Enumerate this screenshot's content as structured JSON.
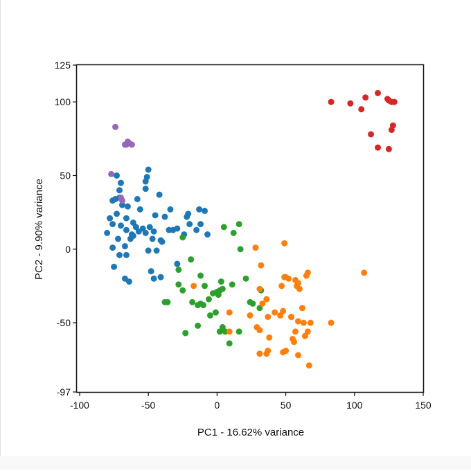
{
  "chart_data": {
    "type": "scatter",
    "xlabel": "PC1 - 16.62% variance",
    "ylabel": "PC2 - 9.90% variance",
    "xlim": [
      -102,
      150
    ],
    "ylim": [
      -97,
      125
    ],
    "x_ticks": [
      "-100",
      "-50",
      "0",
      "50",
      "100",
      "150"
    ],
    "y_ticks": [
      "125",
      "100",
      "50",
      "0",
      "-50",
      "-97"
    ],
    "grid": false,
    "legend": "none",
    "series": [
      {
        "color": "#1f77b4",
        "points": [
          [
            -80,
            11
          ],
          [
            -78,
            21
          ],
          [
            -76,
            33
          ],
          [
            -76,
            1
          ],
          [
            -76,
            17
          ],
          [
            -75,
            -12
          ],
          [
            -74,
            34
          ],
          [
            -73,
            24
          ],
          [
            -73,
            50
          ],
          [
            -72,
            7
          ],
          [
            -71,
            40
          ],
          [
            -71,
            -4
          ],
          [
            -71,
            35
          ],
          [
            -70,
            45
          ],
          [
            -70,
            16
          ],
          [
            -69,
            30
          ],
          [
            -67,
            -20
          ],
          [
            -67,
            2
          ],
          [
            -66,
            -4
          ],
          [
            -66,
            13
          ],
          [
            -66,
            21
          ],
          [
            -65,
            29
          ],
          [
            -64,
            -22
          ],
          [
            -63,
            7
          ],
          [
            -62,
            10
          ],
          [
            -61,
            9
          ],
          [
            -61,
            18
          ],
          [
            -59,
            15
          ],
          [
            -58,
            34
          ],
          [
            -57,
            12
          ],
          [
            -56,
            27
          ],
          [
            -54,
            14
          ],
          [
            -52,
            11
          ],
          [
            -52,
            41
          ],
          [
            -52,
            46
          ],
          [
            -51,
            49
          ],
          [
            -50,
            54
          ],
          [
            -50,
            -1
          ],
          [
            -49,
            15
          ],
          [
            -48,
            -15
          ],
          [
            -47,
            7
          ],
          [
            -46,
            -20
          ],
          [
            -46,
            12
          ],
          [
            -45,
            23
          ],
          [
            -44,
            -1
          ],
          [
            -42,
            37
          ],
          [
            -41,
            -19
          ],
          [
            -41,
            6
          ],
          [
            -40,
            5
          ],
          [
            -38,
            22
          ],
          [
            -35,
            13
          ],
          [
            -34,
            27
          ],
          [
            -32,
            13
          ],
          [
            -29,
            -10
          ],
          [
            -29,
            14
          ],
          [
            -24,
            10
          ],
          [
            -22,
            22
          ],
          [
            -21,
            24
          ],
          [
            -20,
            17
          ],
          [
            -15,
            13
          ],
          [
            -13,
            27
          ],
          [
            -12,
            17
          ],
          [
            -9,
            26
          ],
          [
            -7,
            10
          ]
        ]
      },
      {
        "color": "#9467bd",
        "points": [
          [
            -77,
            51
          ],
          [
            -74,
            83
          ],
          [
            -70,
            35
          ],
          [
            -69,
            33
          ],
          [
            -67,
            71
          ],
          [
            -66,
            71
          ],
          [
            -65,
            73
          ],
          [
            -64,
            72
          ],
          [
            -62,
            71
          ]
        ]
      },
      {
        "color": "#2ca02c",
        "points": [
          [
            -38,
            -36
          ],
          [
            -36,
            -36
          ],
          [
            -28,
            -14
          ],
          [
            -28,
            -24
          ],
          [
            -25,
            -28
          ],
          [
            -25,
            8
          ],
          [
            -23,
            -57
          ],
          [
            -19,
            -7
          ],
          [
            -18,
            -36
          ],
          [
            -14,
            -38
          ],
          [
            -14,
            -52
          ],
          [
            -12,
            -18
          ],
          [
            -12,
            -37
          ],
          [
            -10,
            -38
          ],
          [
            -9,
            -25
          ],
          [
            -6,
            -34
          ],
          [
            -5,
            -45
          ],
          [
            -3,
            -30
          ],
          [
            -1,
            -43
          ],
          [
            0,
            -29
          ],
          [
            1,
            -31
          ],
          [
            2,
            -28
          ],
          [
            2,
            -56
          ],
          [
            3,
            -22
          ],
          [
            4,
            -53
          ],
          [
            4,
            -27
          ],
          [
            6,
            -56
          ],
          [
            5,
            15
          ],
          [
            9,
            -64
          ],
          [
            11,
            -24
          ],
          [
            12,
            11
          ],
          [
            16,
            -56
          ],
          [
            16,
            17
          ],
          [
            17,
            0
          ],
          [
            21,
            -20
          ],
          [
            24,
            -36
          ],
          [
            26,
            -37
          ],
          [
            31,
            -40
          ],
          [
            32,
            -28
          ]
        ]
      },
      {
        "color": "#ff7f0e",
        "points": [
          [
            -17,
            -25
          ],
          [
            9,
            -43
          ],
          [
            9,
            -56
          ],
          [
            24,
            -45
          ],
          [
            28,
            1
          ],
          [
            29,
            -53
          ],
          [
            31,
            -71
          ],
          [
            31,
            -55
          ],
          [
            33,
            -37
          ],
          [
            31,
            -27
          ],
          [
            32,
            -11
          ],
          [
            36,
            -34
          ],
          [
            36,
            -71
          ],
          [
            37,
            -69
          ],
          [
            37,
            -46
          ],
          [
            38,
            -60
          ],
          [
            42,
            -43
          ],
          [
            46,
            -45
          ],
          [
            47,
            -25
          ],
          [
            48,
            -70
          ],
          [
            48,
            -42
          ],
          [
            49,
            4
          ],
          [
            49,
            -19
          ],
          [
            50,
            -69
          ],
          [
            50,
            -19
          ],
          [
            52,
            -20
          ],
          [
            54,
            -46
          ],
          [
            54,
            -46
          ],
          [
            55,
            -61
          ],
          [
            56,
            -63
          ],
          [
            57,
            -56
          ],
          [
            57,
            -21
          ],
          [
            58,
            -25
          ],
          [
            59,
            -23
          ],
          [
            59,
            -49
          ],
          [
            59,
            -72
          ],
          [
            60,
            -27
          ],
          [
            62,
            -40
          ],
          [
            63,
            -50
          ],
          [
            64,
            -59
          ],
          [
            65,
            -18
          ],
          [
            66,
            -16
          ],
          [
            66,
            -56
          ],
          [
            67,
            -79
          ],
          [
            68,
            -50
          ],
          [
            83,
            -50
          ],
          [
            107,
            -16
          ]
        ]
      },
      {
        "color": "#d62728",
        "points": [
          [
            83,
            100
          ],
          [
            97,
            99
          ],
          [
            105,
            95
          ],
          [
            108,
            103
          ],
          [
            112,
            78
          ],
          [
            117,
            69
          ],
          [
            117,
            106
          ],
          [
            124,
            102
          ],
          [
            125,
            101
          ],
          [
            125,
            68
          ],
          [
            127,
            100
          ],
          [
            127,
            81
          ],
          [
            128,
            84
          ],
          [
            129,
            100
          ]
        ]
      }
    ]
  }
}
